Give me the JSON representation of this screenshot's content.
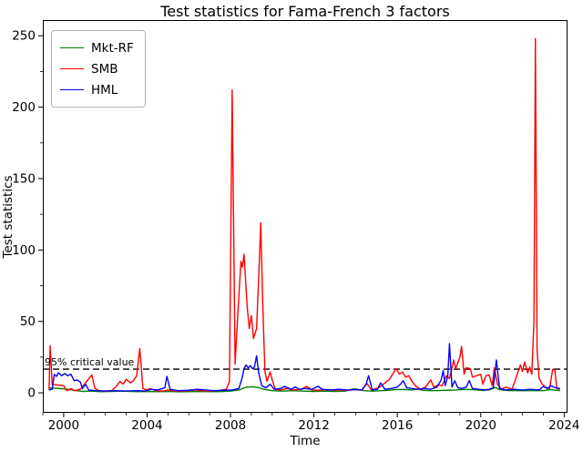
{
  "figure": {
    "background": "#ffffff"
  },
  "chart_data": {
    "type": "line",
    "title": "Test statistics for Fama-French 3 factors",
    "xlabel": "Time",
    "ylabel": "Test statistics",
    "xlim": [
      1999.0,
      2024.16
    ],
    "ylim": [
      -14,
      261
    ],
    "xticks": [
      2000,
      2004,
      2008,
      2012,
      2016,
      2020,
      2024
    ],
    "yticks": [
      0,
      50,
      100,
      150,
      200,
      250
    ],
    "xminor_step": 1,
    "yminor_step": 25,
    "grid": false,
    "legend_position": "upper-left",
    "axis_color": "#000000",
    "critical_line": {
      "value": 16.6,
      "label": "95% critical value",
      "style": "dashed",
      "color": "#000000"
    },
    "series": [
      {
        "name": "Mkt-RF",
        "color": "#008000",
        "points": [
          [
            1999.3,
            3.5
          ],
          [
            1999.6,
            3.2
          ],
          [
            2000.0,
            2.8
          ],
          [
            2000.3,
            2.2
          ],
          [
            2000.6,
            1.5
          ],
          [
            2000.9,
            1.0
          ],
          [
            2001.3,
            1.2
          ],
          [
            2001.8,
            0.8
          ],
          [
            2002.3,
            1.0
          ],
          [
            2002.8,
            1.2
          ],
          [
            2003.2,
            1.0
          ],
          [
            2003.6,
            0.8
          ],
          [
            2004.0,
            1.0
          ],
          [
            2004.5,
            0.8
          ],
          [
            2005.0,
            1.0
          ],
          [
            2005.5,
            0.7
          ],
          [
            2006.0,
            0.8
          ],
          [
            2006.5,
            1.0
          ],
          [
            2007.0,
            0.8
          ],
          [
            2007.5,
            0.9
          ],
          [
            2008.0,
            1.2
          ],
          [
            2008.4,
            2.0
          ],
          [
            2008.7,
            3.8
          ],
          [
            2009.0,
            4.2
          ],
          [
            2009.3,
            3.8
          ],
          [
            2009.6,
            2.5
          ],
          [
            2010.0,
            1.5
          ],
          [
            2010.5,
            1.2
          ],
          [
            2011.0,
            1.5
          ],
          [
            2011.5,
            1.2
          ],
          [
            2012.0,
            1.0
          ],
          [
            2012.5,
            1.2
          ],
          [
            2013.0,
            1.0
          ],
          [
            2013.5,
            1.2
          ],
          [
            2013.9,
            2.8
          ],
          [
            2014.1,
            2.5
          ],
          [
            2014.4,
            1.5
          ],
          [
            2014.8,
            1.2
          ],
          [
            2015.2,
            1.5
          ],
          [
            2015.6,
            1.8
          ],
          [
            2015.9,
            2.2
          ],
          [
            2016.3,
            2.4
          ],
          [
            2016.7,
            2.0
          ],
          [
            2017.0,
            2.6
          ],
          [
            2017.2,
            1.8
          ],
          [
            2017.6,
            1.5
          ],
          [
            2018.0,
            1.6
          ],
          [
            2018.4,
            1.8
          ],
          [
            2018.8,
            2.0
          ],
          [
            2019.2,
            2.4
          ],
          [
            2019.6,
            2.2
          ],
          [
            2020.0,
            1.8
          ],
          [
            2020.4,
            2.0
          ],
          [
            2020.7,
            3.8
          ],
          [
            2020.9,
            2.2
          ],
          [
            2021.3,
            1.6
          ],
          [
            2021.8,
            1.5
          ],
          [
            2022.2,
            1.6
          ],
          [
            2022.6,
            1.5
          ],
          [
            2023.0,
            1.5
          ],
          [
            2023.3,
            2.2
          ],
          [
            2023.6,
            1.8
          ],
          [
            2023.8,
            1.5
          ]
        ]
      },
      {
        "name": "SMB",
        "color": "#ff0000",
        "points": [
          [
            1999.3,
            2.0
          ],
          [
            1999.35,
            33.0
          ],
          [
            1999.45,
            6.0
          ],
          [
            1999.7,
            5.5
          ],
          [
            2000.0,
            5.0
          ],
          [
            2000.15,
            1.5
          ],
          [
            2000.35,
            3.0
          ],
          [
            2000.5,
            1.5
          ],
          [
            2000.8,
            2.5
          ],
          [
            2001.1,
            8.0
          ],
          [
            2001.35,
            12.5
          ],
          [
            2001.5,
            3.0
          ],
          [
            2001.7,
            1.5
          ],
          [
            2002.0,
            1.3
          ],
          [
            2002.3,
            1.5
          ],
          [
            2002.55,
            5.0
          ],
          [
            2002.7,
            8.0
          ],
          [
            2002.85,
            6.0
          ],
          [
            2003.0,
            9.5
          ],
          [
            2003.2,
            7.0
          ],
          [
            2003.35,
            8.5
          ],
          [
            2003.5,
            12.0
          ],
          [
            2003.65,
            31.0
          ],
          [
            2003.8,
            3.0
          ],
          [
            2004.0,
            2.0
          ],
          [
            2004.15,
            3.0
          ],
          [
            2004.4,
            1.5
          ],
          [
            2004.8,
            1.3
          ],
          [
            2005.0,
            2.0
          ],
          [
            2005.3,
            1.3
          ],
          [
            2005.8,
            1.2
          ],
          [
            2006.3,
            2.0
          ],
          [
            2006.6,
            1.5
          ],
          [
            2007.0,
            1.3
          ],
          [
            2007.4,
            1.5
          ],
          [
            2007.8,
            2.5
          ],
          [
            2007.95,
            8.0
          ],
          [
            2008.08,
            212.0
          ],
          [
            2008.22,
            20.0
          ],
          [
            2008.35,
            55.0
          ],
          [
            2008.5,
            92.0
          ],
          [
            2008.57,
            88.0
          ],
          [
            2008.65,
            97.0
          ],
          [
            2008.8,
            60.0
          ],
          [
            2008.9,
            45.0
          ],
          [
            2009.0,
            54.0
          ],
          [
            2009.1,
            38.0
          ],
          [
            2009.25,
            45.0
          ],
          [
            2009.35,
            80.0
          ],
          [
            2009.45,
            119.0
          ],
          [
            2009.55,
            60.0
          ],
          [
            2009.65,
            15.0
          ],
          [
            2009.75,
            8.0
          ],
          [
            2009.9,
            14.5
          ],
          [
            2010.0,
            9.0
          ],
          [
            2010.15,
            2.5
          ],
          [
            2010.4,
            2.0
          ],
          [
            2010.7,
            3.0
          ],
          [
            2011.0,
            2.0
          ],
          [
            2011.4,
            2.5
          ],
          [
            2011.65,
            4.5
          ],
          [
            2011.9,
            2.0
          ],
          [
            2012.2,
            1.8
          ],
          [
            2012.5,
            2.2
          ],
          [
            2012.8,
            1.8
          ],
          [
            2013.2,
            2.0
          ],
          [
            2013.6,
            1.8
          ],
          [
            2014.0,
            2.2
          ],
          [
            2014.3,
            1.8
          ],
          [
            2014.55,
            6.5
          ],
          [
            2014.75,
            2.0
          ],
          [
            2015.1,
            3.5
          ],
          [
            2015.25,
            5.0
          ],
          [
            2015.45,
            7.5
          ],
          [
            2015.6,
            9.0
          ],
          [
            2015.75,
            12.5
          ],
          [
            2015.94,
            17.0
          ],
          [
            2016.1,
            13.0
          ],
          [
            2016.25,
            14.5
          ],
          [
            2016.4,
            11.0
          ],
          [
            2016.55,
            12.0
          ],
          [
            2016.7,
            8.0
          ],
          [
            2016.9,
            4.5
          ],
          [
            2017.1,
            2.5
          ],
          [
            2017.35,
            4.0
          ],
          [
            2017.6,
            9.0
          ],
          [
            2017.75,
            4.0
          ],
          [
            2017.95,
            5.5
          ],
          [
            2018.15,
            5.0
          ],
          [
            2018.35,
            12.0
          ],
          [
            2018.5,
            10.0
          ],
          [
            2018.6,
            16.0
          ],
          [
            2018.7,
            23.0
          ],
          [
            2018.8,
            17.0
          ],
          [
            2019.0,
            25.0
          ],
          [
            2019.08,
            32.5
          ],
          [
            2019.2,
            13.0
          ],
          [
            2019.3,
            17.5
          ],
          [
            2019.5,
            17.0
          ],
          [
            2019.6,
            11.0
          ],
          [
            2019.8,
            12.0
          ],
          [
            2020.0,
            13.0
          ],
          [
            2020.1,
            6.0
          ],
          [
            2020.25,
            12.0
          ],
          [
            2020.4,
            12.5
          ],
          [
            2020.55,
            5.0
          ],
          [
            2020.65,
            17.5
          ],
          [
            2020.8,
            6.0
          ],
          [
            2021.0,
            2.5
          ],
          [
            2021.2,
            4.0
          ],
          [
            2021.5,
            2.5
          ],
          [
            2021.75,
            13.0
          ],
          [
            2021.9,
            19.5
          ],
          [
            2022.0,
            15.0
          ],
          [
            2022.1,
            21.5
          ],
          [
            2022.25,
            14.0
          ],
          [
            2022.35,
            18.0
          ],
          [
            2022.45,
            13.0
          ],
          [
            2022.55,
            50.0
          ],
          [
            2022.62,
            248.0
          ],
          [
            2022.7,
            30.0
          ],
          [
            2022.8,
            10.0
          ],
          [
            2022.95,
            6.0
          ],
          [
            2023.1,
            4.0
          ],
          [
            2023.3,
            3.0
          ],
          [
            2023.45,
            16.5
          ],
          [
            2023.55,
            16.0
          ],
          [
            2023.65,
            3.0
          ],
          [
            2023.8,
            2.5
          ]
        ]
      },
      {
        "name": "HML",
        "color": "#0000ff",
        "points": [
          [
            1999.3,
            2.0
          ],
          [
            1999.45,
            2.5
          ],
          [
            1999.55,
            13.0
          ],
          [
            1999.65,
            11.5
          ],
          [
            1999.75,
            14.0
          ],
          [
            1999.9,
            12.0
          ],
          [
            2000.05,
            13.5
          ],
          [
            2000.2,
            12.0
          ],
          [
            2000.35,
            13.0
          ],
          [
            2000.5,
            8.5
          ],
          [
            2000.65,
            9.0
          ],
          [
            2000.8,
            7.5
          ],
          [
            2000.9,
            3.0
          ],
          [
            2001.05,
            6.0
          ],
          [
            2001.2,
            2.0
          ],
          [
            2001.5,
            1.5
          ],
          [
            2002.0,
            1.3
          ],
          [
            2002.5,
            1.5
          ],
          [
            2003.0,
            1.3
          ],
          [
            2003.5,
            1.5
          ],
          [
            2003.9,
            1.3
          ],
          [
            2004.2,
            2.5
          ],
          [
            2004.5,
            2.0
          ],
          [
            2004.85,
            3.5
          ],
          [
            2004.95,
            11.5
          ],
          [
            2005.1,
            2.5
          ],
          [
            2005.5,
            1.5
          ],
          [
            2006.0,
            1.8
          ],
          [
            2006.4,
            2.5
          ],
          [
            2006.8,
            2.0
          ],
          [
            2007.2,
            1.5
          ],
          [
            2007.7,
            1.8
          ],
          [
            2008.1,
            2.0
          ],
          [
            2008.4,
            3.0
          ],
          [
            2008.55,
            10.0
          ],
          [
            2008.65,
            17.0
          ],
          [
            2008.75,
            19.5
          ],
          [
            2008.85,
            17.5
          ],
          [
            2008.95,
            19.0
          ],
          [
            2009.05,
            17.0
          ],
          [
            2009.15,
            18.0
          ],
          [
            2009.25,
            26.0
          ],
          [
            2009.35,
            14.0
          ],
          [
            2009.5,
            5.0
          ],
          [
            2009.7,
            3.5
          ],
          [
            2009.9,
            6.0
          ],
          [
            2010.1,
            2.5
          ],
          [
            2010.4,
            3.0
          ],
          [
            2010.6,
            4.5
          ],
          [
            2010.9,
            2.5
          ],
          [
            2011.1,
            4.0
          ],
          [
            2011.3,
            2.5
          ],
          [
            2011.6,
            3.0
          ],
          [
            2011.9,
            2.5
          ],
          [
            2012.2,
            4.5
          ],
          [
            2012.4,
            2.5
          ],
          [
            2012.8,
            2.0
          ],
          [
            2013.2,
            2.5
          ],
          [
            2013.6,
            2.0
          ],
          [
            2014.0,
            2.2
          ],
          [
            2014.3,
            2.0
          ],
          [
            2014.5,
            6.0
          ],
          [
            2014.62,
            12.0
          ],
          [
            2014.8,
            2.0
          ],
          [
            2015.05,
            2.5
          ],
          [
            2015.2,
            7.0
          ],
          [
            2015.4,
            2.5
          ],
          [
            2015.7,
            3.0
          ],
          [
            2016.0,
            4.0
          ],
          [
            2016.15,
            6.0
          ],
          [
            2016.28,
            8.5
          ],
          [
            2016.45,
            3.5
          ],
          [
            2016.7,
            3.0
          ],
          [
            2017.0,
            2.5
          ],
          [
            2017.3,
            3.0
          ],
          [
            2017.6,
            2.5
          ],
          [
            2017.9,
            4.0
          ],
          [
            2018.1,
            9.0
          ],
          [
            2018.2,
            15.5
          ],
          [
            2018.3,
            5.0
          ],
          [
            2018.42,
            12.0
          ],
          [
            2018.5,
            34.5
          ],
          [
            2018.62,
            4.0
          ],
          [
            2018.75,
            8.5
          ],
          [
            2018.9,
            3.5
          ],
          [
            2019.1,
            3.0
          ],
          [
            2019.3,
            4.0
          ],
          [
            2019.45,
            8.5
          ],
          [
            2019.6,
            3.0
          ],
          [
            2019.9,
            2.5
          ],
          [
            2020.2,
            2.0
          ],
          [
            2020.4,
            2.5
          ],
          [
            2020.6,
            3.5
          ],
          [
            2020.75,
            23.0
          ],
          [
            2020.9,
            3.0
          ],
          [
            2021.2,
            2.0
          ],
          [
            2021.6,
            2.5
          ],
          [
            2022.0,
            2.0
          ],
          [
            2022.4,
            2.5
          ],
          [
            2022.8,
            2.0
          ],
          [
            2023.0,
            4.5
          ],
          [
            2023.2,
            3.0
          ],
          [
            2023.35,
            5.0
          ],
          [
            2023.6,
            3.5
          ],
          [
            2023.8,
            3.0
          ]
        ]
      }
    ]
  }
}
